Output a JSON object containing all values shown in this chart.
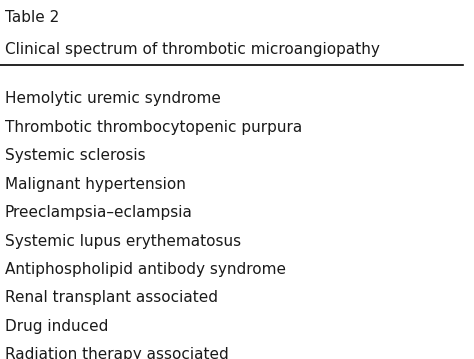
{
  "table_label": "Table 2",
  "title": "Clinical spectrum of thrombotic microangiopathy",
  "items": [
    "Hemolytic uremic syndrome",
    "Thrombotic thrombocytopenic purpura",
    "Systemic sclerosis",
    "Malignant hypertension",
    "Preeclampsia–eclampsia",
    "Systemic lupus erythematosus",
    "Antiphospholipid antibody syndrome",
    "Renal transplant associated",
    "Drug induced",
    "Radiation therapy associated"
  ],
  "background_color": "#ffffff",
  "text_color": "#1a1a1a",
  "font_size_label": 11,
  "font_size_title": 11,
  "font_size_items": 11,
  "line_color": "#000000",
  "fig_width": 4.74,
  "fig_height": 3.59,
  "dpi": 100
}
